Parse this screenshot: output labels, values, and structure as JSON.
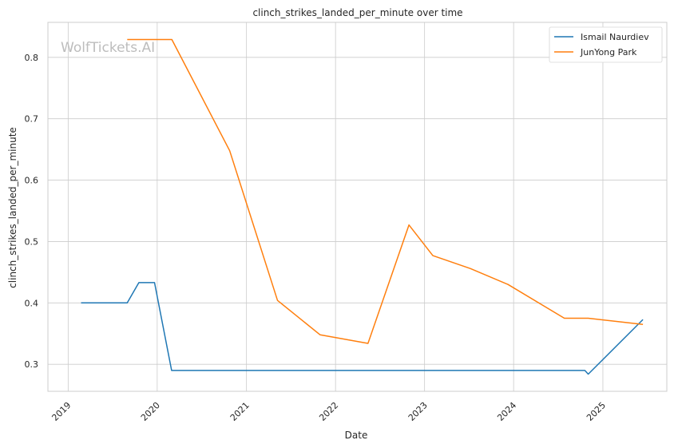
{
  "chart_data": {
    "type": "line",
    "title": "clinch_strikes_landed_per_minute over time",
    "xlabel": "Date",
    "ylabel": "clinch_strikes_landed_per_minute",
    "x_ticks": [
      "2019",
      "2020",
      "2021",
      "2022",
      "2023",
      "2024",
      "2025"
    ],
    "y_ticks": [
      0.3,
      0.4,
      0.5,
      0.6,
      0.7,
      0.8
    ],
    "xlim": [
      "2018-10-10",
      "2025-09-20"
    ],
    "ylim": [
      0.256,
      0.857
    ],
    "grid": true,
    "legend_position": "top-right",
    "watermark": "WolfTickets.AI",
    "series": [
      {
        "name": "Ismail Naurdiev",
        "color": "#1f77b4",
        "points": [
          [
            "2019-02-23",
            0.4
          ],
          [
            "2019-08-31",
            0.4
          ],
          [
            "2019-10-18",
            0.433
          ],
          [
            "2019-12-21",
            0.433
          ],
          [
            "2020-02-29",
            0.29
          ],
          [
            "2024-10-19",
            0.29
          ],
          [
            "2024-11-02",
            0.284
          ],
          [
            "2025-06-14",
            0.373
          ]
        ]
      },
      {
        "name": "JunYong Park",
        "color": "#ff7f0e",
        "points": [
          [
            "2019-08-31",
            0.829
          ],
          [
            "2020-03-01",
            0.829
          ],
          [
            "2020-10-24",
            0.648
          ],
          [
            "2021-05-08",
            0.404
          ],
          [
            "2021-10-30",
            0.348
          ],
          [
            "2022-05-14",
            0.334
          ],
          [
            "2022-10-29",
            0.527
          ],
          [
            "2023-02-04",
            0.477
          ],
          [
            "2023-07-08",
            0.456
          ],
          [
            "2023-12-09",
            0.43
          ],
          [
            "2024-07-27",
            0.375
          ],
          [
            "2024-11-02",
            0.375
          ],
          [
            "2025-06-14",
            0.365
          ]
        ]
      }
    ]
  }
}
